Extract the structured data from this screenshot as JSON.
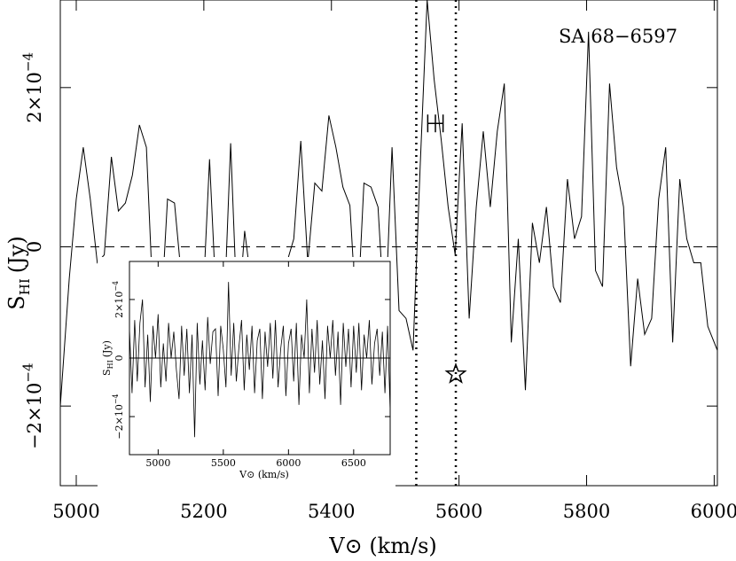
{
  "chart_data": [
    {
      "type": "line",
      "title": "SA 68−6597",
      "xlabel": "V⊙ (km/s)",
      "ylabel": "S",
      "ylabel_sub": "HI",
      "ylabel_unit": "(Jy)",
      "xlim": [
        4975,
        6005
      ],
      "ylim": [
        -0.0003,
        0.00031
      ],
      "xticks": [
        5000,
        5200,
        5400,
        5600,
        5800,
        6000
      ],
      "xtick_labels": [
        "5000",
        "5200",
        "5400",
        "5600",
        "5800",
        "6000"
      ],
      "yticks": [
        -0.0002,
        0,
        0.0002
      ],
      "ytick_labels": [
        {
          "base": "−2×10",
          "exp": "−4"
        },
        {
          "base": "0",
          "exp": ""
        },
        {
          "base": "2×10",
          "exp": "−4"
        }
      ],
      "zero_line": {
        "y": 0,
        "style": "dashed"
      },
      "vlines": [
        {
          "x": 5533,
          "style": "dotted"
        },
        {
          "x": 5595,
          "style": "dotted"
        }
      ],
      "marker_errorbar": {
        "x": 5563,
        "y": 0.000155,
        "xerr": 12
      },
      "marker_star": {
        "x": 5595,
        "y": -0.00016
      },
      "series": [
        {
          "x": [
            4975,
            4989,
            5000,
            5011,
            5022,
            5033,
            5044,
            5055,
            5066,
            5077,
            5088,
            5099,
            5110,
            5121,
            5132,
            5143,
            5154,
            5165,
            5176,
            5187,
            5198,
            5209,
            5220,
            5231,
            5242,
            5253,
            5264,
            5275,
            5286,
            5297,
            5308,
            5319,
            5330,
            5341,
            5352,
            5363,
            5374,
            5385,
            5396,
            5407,
            5418,
            5429,
            5440,
            5451,
            5462,
            5473,
            5484,
            5495,
            5506,
            5517,
            5528,
            5539,
            5550,
            5561,
            5572,
            5583,
            5594,
            5605,
            5616,
            5627,
            5638,
            5649,
            5660,
            5671,
            5682,
            5693,
            5704,
            5715,
            5726,
            5737,
            5748,
            5759,
            5770,
            5781,
            5792,
            5803,
            5814,
            5825,
            5836,
            5847,
            5858,
            5869,
            5880,
            5891,
            5902,
            5913,
            5924,
            5935,
            5946,
            5957,
            5968,
            5979,
            5990,
            6005
          ],
          "y": [
            -0.0002,
            -4e-05,
            6e-05,
            0.000125,
            6e-05,
            -2e-05,
            -1e-05,
            0.000113,
            4.5e-05,
            5.5e-05,
            9e-05,
            0.000153,
            0.000125,
            -8e-05,
            -0.0001,
            6e-05,
            5.5e-05,
            -4e-05,
            -9e-05,
            -0.0001,
            -8e-05,
            0.00011,
            -8e-05,
            -0.0001,
            0.00013,
            -0.0001,
            2e-05,
            -5e-05,
            -0.0001,
            -0.0001,
            -9e-05,
            -0.0001,
            -2e-05,
            1e-05,
            0.000133,
            -2e-05,
            8e-05,
            7e-05,
            0.000165,
            0.000125,
            7.5e-05,
            5.2e-05,
            -0.0001,
            8e-05,
            7.5e-05,
            5e-05,
            -0.0001,
            0.000125,
            -8e-05,
            -9e-05,
            -0.00013,
            0.0001,
            0.00031,
            0.00021,
            0.000135,
            5e-05,
            -1e-05,
            0.000155,
            -9e-05,
            5e-05,
            0.000145,
            5e-05,
            0.000145,
            0.000205,
            -0.00012,
            1e-05,
            -0.00018,
            3e-05,
            -2e-05,
            5e-05,
            -5e-05,
            -7e-05,
            8.5e-05,
            1e-05,
            3.8e-05,
            0.00027,
            -3e-05,
            -5e-05,
            0.000205,
            0.0001,
            5e-05,
            -0.00015,
            -4e-05,
            -0.00011,
            -9e-05,
            6e-05,
            0.000125,
            -0.00012,
            8.5e-05,
            1e-05,
            -2e-05,
            -2e-05,
            -0.0001,
            -0.00013
          ]
        }
      ]
    },
    {
      "type": "line",
      "xlabel": "V⊙ (km/s)",
      "ylabel": "S",
      "ylabel_sub": "HI",
      "ylabel_unit": "(Jy)",
      "xlim": [
        4780,
        6780
      ],
      "ylim": [
        -0.00033,
        0.00033
      ],
      "xticks": [
        5000,
        5500,
        6000,
        6500
      ],
      "xtick_labels": [
        "5000",
        "5500",
        "6000",
        "6500"
      ],
      "yticks": [
        -0.0002,
        0,
        0.0002
      ],
      "ytick_labels": [
        {
          "base": "−2×10",
          "exp": "−4"
        },
        {
          "base": "0",
          "exp": ""
        },
        {
          "base": "2×10",
          "exp": "−4"
        }
      ],
      "zero_line": {
        "y": 0,
        "style": "solid"
      },
      "series": [
        {
          "x": [
            4780,
            4800,
            4820,
            4840,
            4860,
            4880,
            4900,
            4920,
            4940,
            4960,
            4980,
            5000,
            5020,
            5040,
            5060,
            5080,
            5100,
            5120,
            5140,
            5160,
            5180,
            5200,
            5220,
            5240,
            5260,
            5280,
            5300,
            5320,
            5340,
            5360,
            5380,
            5400,
            5420,
            5440,
            5460,
            5480,
            5500,
            5520,
            5540,
            5560,
            5580,
            5600,
            5620,
            5640,
            5660,
            5680,
            5700,
            5720,
            5740,
            5760,
            5780,
            5800,
            5820,
            5840,
            5860,
            5880,
            5900,
            5920,
            5940,
            5960,
            5980,
            6000,
            6020,
            6040,
            6060,
            6080,
            6100,
            6120,
            6140,
            6160,
            6180,
            6200,
            6220,
            6240,
            6260,
            6280,
            6300,
            6320,
            6340,
            6360,
            6380,
            6400,
            6420,
            6440,
            6460,
            6480,
            6500,
            6520,
            6540,
            6560,
            6580,
            6600,
            6620,
            6640,
            6660,
            6680,
            6700,
            6720,
            6740,
            6760,
            6780
          ],
          "y": [
            0.0001,
            -0.00012,
            0.00013,
            -8e-05,
            0.00012,
            0.0002,
            -0.0001,
            8e-05,
            -0.00015,
            0.00011,
            0.0,
            0.00015,
            -0.0001,
            5e-05,
            -8e-05,
            0.00012,
            0.0,
            9e-05,
            -4e-05,
            -0.00014,
            0.00011,
            -6e-05,
            0.0001,
            -0.00012,
            8e-05,
            -0.00027,
            0.00012,
            -9e-05,
            6e-05,
            -0.00011,
            0.00014,
            -2e-05,
            9e-05,
            0.0001,
            -0.00013,
            0.00011,
            3e-05,
            -0.0001,
            0.00026,
            -6e-05,
            0.00012,
            -8e-05,
            4e-05,
            0.00013,
            -0.00011,
            8e-05,
            -4e-05,
            0.00011,
            -0.00012,
            6e-05,
            0.0001,
            -0.00014,
            9e-05,
            -3e-05,
            0.00012,
            -7e-05,
            0.00013,
            -0.0001,
            3e-05,
            0.00011,
            -0.00013,
            5e-05,
            0.0001,
            -8e-05,
            0.00012,
            -0.00016,
            8e-05,
            0.0,
            0.0002,
            -0.00012,
            0.0001,
            -5e-05,
            0.00013,
            -9e-05,
            6e-05,
            -0.00014,
            0.00011,
            0.0,
            0.00013,
            -6e-05,
            9e-05,
            -0.00016,
            0.00012,
            -3e-05,
            0.0001,
            -0.0001,
            0.00011,
            -5e-05,
            0.00012,
            -0.00011,
            8e-05,
            0.0,
            0.00013,
            -9e-05,
            5e-05,
            0.0001,
            -6e-05,
            9e-05,
            -0.00012,
            0.00011,
            -0.00018
          ]
        }
      ]
    }
  ]
}
